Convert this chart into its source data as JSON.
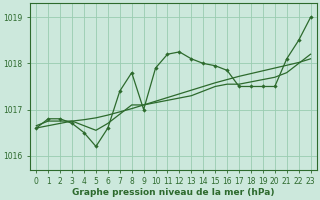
{
  "x": [
    0,
    1,
    2,
    3,
    4,
    5,
    6,
    7,
    8,
    9,
    10,
    11,
    12,
    13,
    14,
    15,
    16,
    17,
    18,
    19,
    20,
    21,
    22,
    23
  ],
  "y_jagged": [
    1016.6,
    1016.8,
    1016.8,
    1016.7,
    1016.5,
    1016.2,
    1016.6,
    1017.4,
    1017.8,
    1017.0,
    1017.9,
    1018.2,
    1018.25,
    1018.1,
    1018.0,
    1017.95,
    1017.85,
    1017.5,
    1017.5,
    1017.5,
    1017.5,
    1018.1,
    1018.5,
    1019.0
  ],
  "y_smooth": [
    1016.65,
    1016.75,
    1016.75,
    1016.75,
    1016.65,
    1016.55,
    1016.7,
    1016.9,
    1017.1,
    1017.1,
    1017.15,
    1017.2,
    1017.25,
    1017.3,
    1017.4,
    1017.5,
    1017.55,
    1017.55,
    1017.6,
    1017.65,
    1017.7,
    1017.8,
    1018.0,
    1018.2
  ],
  "y_linear": [
    1016.6,
    1016.65,
    1016.7,
    1016.75,
    1016.78,
    1016.82,
    1016.88,
    1016.95,
    1017.02,
    1017.1,
    1017.18,
    1017.26,
    1017.34,
    1017.42,
    1017.5,
    1017.58,
    1017.65,
    1017.72,
    1017.78,
    1017.84,
    1017.9,
    1017.96,
    1018.02,
    1018.1
  ],
  "line_color": "#2d6a2d",
  "bg_color": "#cce8dc",
  "grid_color": "#99ccb0",
  "xlabel": "Graphe pression niveau de la mer (hPa)",
  "ylim": [
    1015.7,
    1019.3
  ],
  "xlim": [
    -0.5,
    23.5
  ],
  "yticks": [
    1016,
    1017,
    1018,
    1019
  ],
  "xticks": [
    0,
    1,
    2,
    3,
    4,
    5,
    6,
    7,
    8,
    9,
    10,
    11,
    12,
    13,
    14,
    15,
    16,
    17,
    18,
    19,
    20,
    21,
    22,
    23
  ]
}
